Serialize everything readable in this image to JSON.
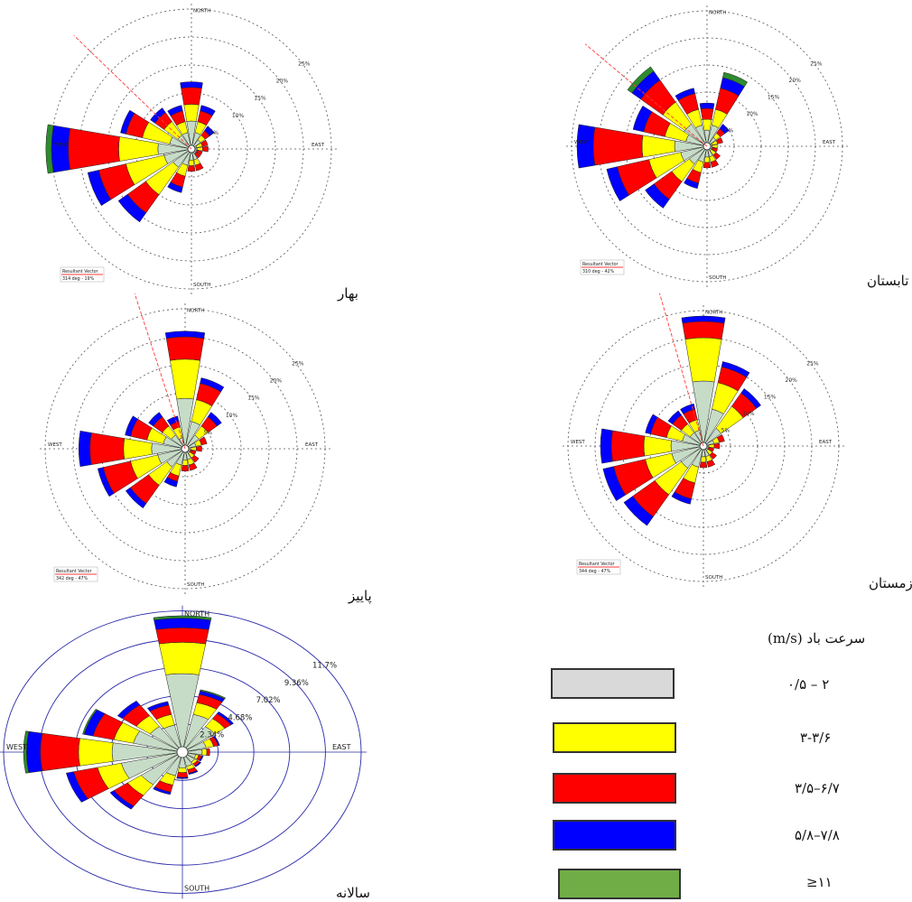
{
  "colors": {
    "bin1": "#c6dcc6",
    "bin2": "#ffff00",
    "bin3": "#ff0000",
    "bin4": "#0000ff",
    "bin5": "#2e8b2e"
  },
  "legend": {
    "title": "سرعت باد (m/s)",
    "items": [
      {
        "label": "۰/۵ – ۲",
        "color": "#d9d9d9"
      },
      {
        "label": "۳-۳/۶",
        "color": "#ffff00"
      },
      {
        "label": "۳/۵–۶/۷",
        "color": "#ff0000"
      },
      {
        "label": "۵/۸–۷/۸",
        "color": "#0000ff"
      },
      {
        "label": "≥۱۱",
        "color": "#70ad47"
      }
    ]
  },
  "chart_data": [
    {
      "type": "windrose",
      "caption": "بهار",
      "directions": [
        "N",
        "NNE",
        "NE",
        "ENE",
        "E",
        "ESE",
        "SE",
        "SSE",
        "S",
        "SSW",
        "SW",
        "WSW",
        "W",
        "WNW",
        "NW",
        "NNW"
      ],
      "rings": [
        "5%",
        "10%",
        "15%",
        "20%",
        "25%"
      ],
      "ring_values": [
        5,
        10,
        15,
        20,
        25
      ],
      "compass": {
        "north": "NORTH",
        "east": "EAST",
        "south": "SOUTH",
        "west": "WEST"
      },
      "resultant": {
        "label": "Resultant Vector",
        "value": "314 deg - 19%",
        "direction_deg": 314
      },
      "petals": [
        [
          5,
          3,
          3,
          1,
          0
        ],
        [
          3,
          2,
          2,
          1,
          0
        ],
        [
          2,
          1,
          1,
          1,
          0
        ],
        [
          1,
          1,
          1,
          0,
          0
        ],
        [
          1,
          1,
          1,
          0,
          0
        ],
        [
          1,
          0,
          1,
          0,
          0
        ],
        [
          1,
          0,
          1,
          0,
          0
        ],
        [
          2,
          1,
          1,
          0,
          0
        ],
        [
          2,
          1,
          1,
          0,
          0
        ],
        [
          3,
          2,
          2,
          1,
          0
        ],
        [
          4,
          6,
          4,
          2,
          0
        ],
        [
          5,
          7,
          5,
          2,
          0
        ],
        [
          6,
          7,
          9,
          3,
          1
        ],
        [
          4,
          5,
          3,
          1,
          0
        ],
        [
          3,
          3,
          2,
          1,
          0
        ],
        [
          3,
          2,
          2,
          1,
          0
        ]
      ]
    },
    {
      "type": "windrose",
      "caption": "تابستان",
      "directions": [
        "N",
        "NNE",
        "NE",
        "ENE",
        "E",
        "ESE",
        "SE",
        "SSE",
        "S",
        "SSW",
        "SW",
        "WSW",
        "W",
        "WNW",
        "NW",
        "NNW"
      ],
      "rings": [
        "5%",
        "10%",
        "15%",
        "20%",
        "25%"
      ],
      "ring_values": [
        5,
        10,
        15,
        20,
        25
      ],
      "compass": {
        "north": "NORTH",
        "east": "EAST",
        "south": "SOUTH",
        "west": "WEST"
      },
      "resultant": {
        "label": "Resultant Vector",
        "value": "310 deg - 42%",
        "direction_deg": 310
      },
      "petals": [
        [
          3,
          2,
          2,
          1,
          0
        ],
        [
          4,
          3,
          4,
          2,
          1
        ],
        [
          2,
          1,
          1,
          1,
          0
        ],
        [
          1,
          1,
          1,
          0,
          0
        ],
        [
          1,
          1,
          0,
          0,
          0
        ],
        [
          1,
          0,
          1,
          0,
          0
        ],
        [
          1,
          1,
          1,
          0,
          0
        ],
        [
          2,
          1,
          1,
          0,
          0
        ],
        [
          2,
          1,
          1,
          0,
          0
        ],
        [
          3,
          2,
          2,
          1,
          0
        ],
        [
          4,
          4,
          4,
          2,
          0
        ],
        [
          5,
          6,
          6,
          2,
          0
        ],
        [
          6,
          6,
          9,
          3,
          0
        ],
        [
          4,
          4,
          4,
          2,
          0
        ],
        [
          5,
          5,
          5,
          2,
          1
        ],
        [
          4,
          3,
          3,
          1,
          0
        ]
      ]
    },
    {
      "type": "windrose",
      "caption": "پاییز",
      "directions": [
        "N",
        "NNE",
        "NE",
        "ENE",
        "E",
        "ESE",
        "SE",
        "SSE",
        "S",
        "SSW",
        "SW",
        "WSW",
        "W",
        "WNW",
        "NW",
        "NNW"
      ],
      "rings": [
        "5%",
        "10%",
        "15%",
        "20%",
        "25%"
      ],
      "ring_values": [
        5,
        10,
        15,
        20,
        25
      ],
      "compass": {
        "north": "NORTH",
        "east": "EAST",
        "south": "SOUTH",
        "west": "WEST"
      },
      "resultant": {
        "label": "Resultant Vector",
        "value": "342 deg - 47%",
        "direction_deg": 342
      },
      "petals": [
        [
          9,
          7,
          4,
          1,
          0
        ],
        [
          5,
          4,
          3,
          1,
          0
        ],
        [
          3,
          2,
          2,
          1,
          0
        ],
        [
          2,
          1,
          1,
          0,
          0
        ],
        [
          1,
          1,
          1,
          0,
          0
        ],
        [
          1,
          0,
          1,
          0,
          0
        ],
        [
          1,
          1,
          1,
          0,
          0
        ],
        [
          2,
          1,
          1,
          0,
          0
        ],
        [
          2,
          1,
          1,
          0,
          0
        ],
        [
          3,
          2,
          1,
          1,
          0
        ],
        [
          4,
          4,
          4,
          1,
          0
        ],
        [
          5,
          5,
          5,
          1,
          0
        ],
        [
          6,
          5,
          6,
          2,
          0
        ],
        [
          4,
          3,
          3,
          1,
          0
        ],
        [
          3,
          2,
          2,
          1,
          0
        ],
        [
          2,
          2,
          1,
          1,
          0
        ]
      ]
    },
    {
      "type": "windrose",
      "caption": "زمستان",
      "directions": [
        "N",
        "NNE",
        "NE",
        "ENE",
        "E",
        "ESE",
        "SE",
        "SSE",
        "S",
        "SSW",
        "SW",
        "WSW",
        "W",
        "WNW",
        "NW",
        "NNW"
      ],
      "rings": [
        "5%",
        "10%",
        "15%",
        "20%",
        "25%"
      ],
      "ring_values": [
        5,
        10,
        15,
        20,
        25
      ],
      "compass": {
        "north": "NORTH",
        "east": "EAST",
        "south": "SOUTH",
        "west": "WEST"
      },
      "resultant": {
        "label": "Resultant Vector",
        "value": "344 deg - 47%",
        "direction_deg": 344
      },
      "petals": [
        [
          12,
          8,
          3,
          1,
          0
        ],
        [
          7,
          5,
          3,
          1,
          0
        ],
        [
          4,
          5,
          3,
          1,
          0
        ],
        [
          2,
          1,
          1,
          0,
          0
        ],
        [
          1,
          1,
          1,
          0,
          0
        ],
        [
          1,
          0,
          1,
          0,
          0
        ],
        [
          1,
          1,
          1,
          0,
          0
        ],
        [
          2,
          1,
          1,
          0,
          0
        ],
        [
          2,
          1,
          1,
          0,
          0
        ],
        [
          4,
          3,
          3,
          1,
          0
        ],
        [
          5,
          6,
          5,
          2,
          0
        ],
        [
          6,
          5,
          6,
          2,
          0
        ],
        [
          6,
          5,
          6,
          2,
          0
        ],
        [
          4,
          3,
          3,
          1,
          0
        ],
        [
          3,
          2,
          2,
          1,
          0
        ],
        [
          3,
          2,
          2,
          1,
          0
        ]
      ]
    },
    {
      "type": "windrose",
      "caption": "سالانه",
      "directions": [
        "N",
        "NNE",
        "NE",
        "ENE",
        "E",
        "ESE",
        "SE",
        "SSE",
        "S",
        "SSW",
        "SW",
        "WSW",
        "W",
        "WNW",
        "NW",
        "NNW"
      ],
      "rings": [
        "2.34%",
        "4.68%",
        "7.02%",
        "9.36%",
        "11.7%"
      ],
      "ring_values": [
        2.34,
        4.68,
        7.02,
        9.36,
        11.7
      ],
      "compass": {
        "north": "NORTH",
        "east": "EAST",
        "south": "SOUTH",
        "west": "WEST"
      },
      "petals": [
        [
          6.5,
          2.6,
          1.2,
          0.8,
          0.2
        ],
        [
          3.2,
          1.0,
          0.7,
          0.3,
          0.1
        ],
        [
          2.6,
          0.8,
          0.5,
          0.2,
          0
        ],
        [
          1.6,
          0.5,
          0.3,
          0.1,
          0
        ],
        [
          1.3,
          0.3,
          0.2,
          0,
          0
        ],
        [
          0.9,
          0.2,
          0.2,
          0.1,
          0
        ],
        [
          1.0,
          0.2,
          0.2,
          0.1,
          0
        ],
        [
          1.2,
          0.3,
          0.3,
          0.1,
          0
        ],
        [
          1.3,
          0.4,
          0.4,
          0.1,
          0
        ],
        [
          2.0,
          0.8,
          0.6,
          0.2,
          0
        ],
        [
          3.3,
          1.1,
          1.1,
          0.3,
          0
        ],
        [
          4.1,
          1.6,
          1.6,
          0.5,
          0
        ],
        [
          4.6,
          2.2,
          2.5,
          0.9,
          0.2
        ],
        [
          3.3,
          1.3,
          1.4,
          0.6,
          0.1
        ],
        [
          2.6,
          1.1,
          1.1,
          0.4,
          0
        ],
        [
          2.3,
          0.9,
          0.8,
          0.3,
          0
        ]
      ]
    }
  ]
}
